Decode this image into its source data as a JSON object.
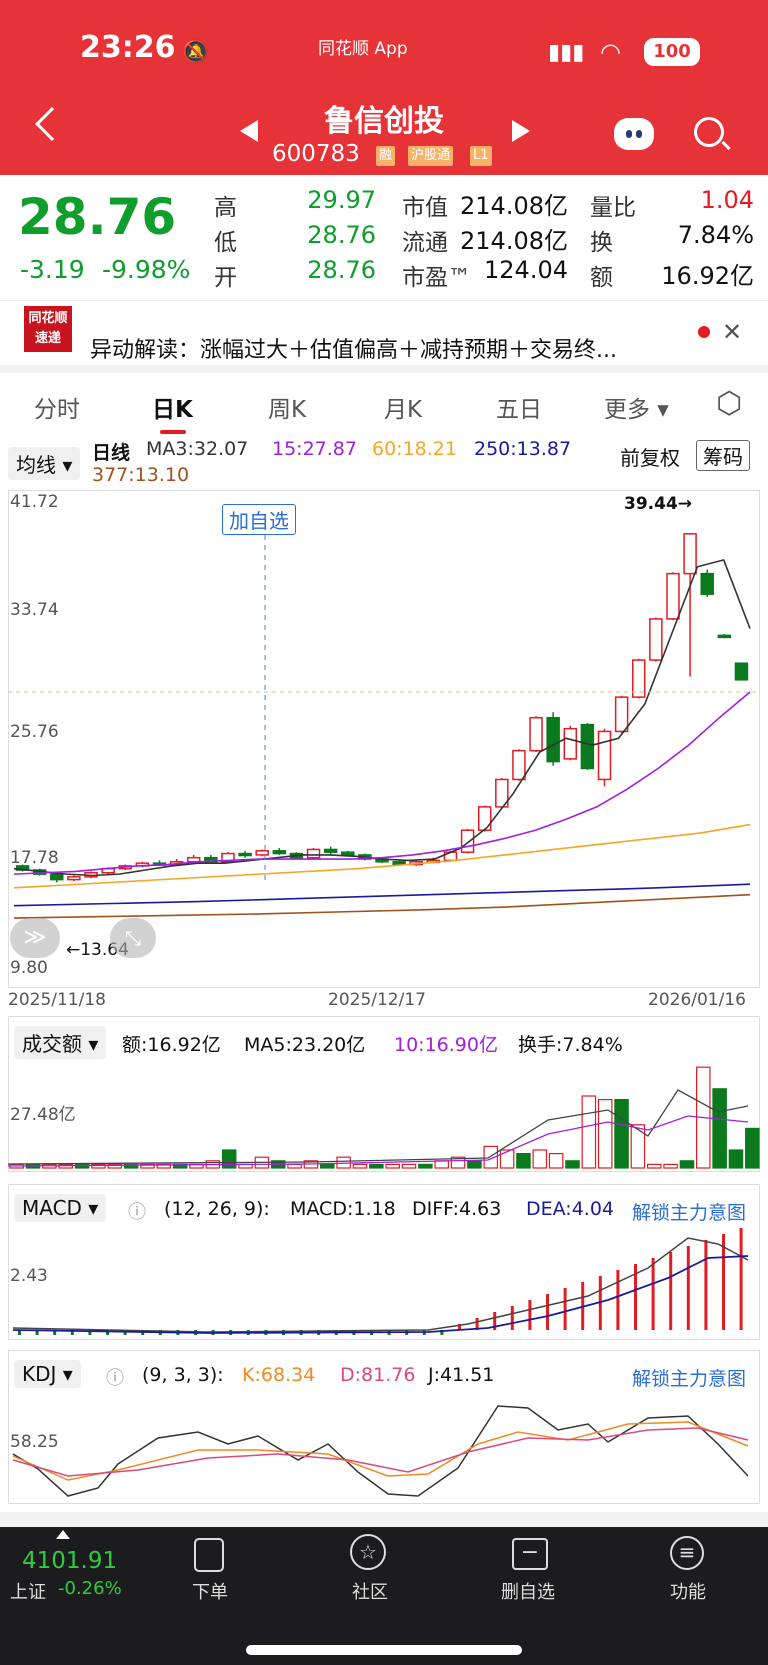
{
  "status_bar": {
    "time": "23:26",
    "app": "同花顺 App",
    "battery": "100"
  },
  "header": {
    "name": "鲁信创投",
    "code": "600783",
    "tags": [
      "融",
      "沪股通",
      "L1"
    ]
  },
  "quote": {
    "price": "28.76",
    "change": "-3.19",
    "change_pct": "-9.98%",
    "labels": {
      "high": "高",
      "low": "低",
      "open": "开",
      "mcap": "市值",
      "float": "流通",
      "pe": "市盈™",
      "vr": "量比",
      "turn": "换",
      "amt": "额"
    },
    "high": "29.97",
    "low": "28.76",
    "open": "28.76",
    "mcap": "214.08亿",
    "float": "214.08亿",
    "pe": "124.04",
    "vr": "1.04",
    "turn": "7.84%",
    "amt": "16.92亿"
  },
  "news": {
    "logo_top": "同花顺",
    "logo_bottom": "速递",
    "text": "异动解读：涨幅过大＋估值偏高＋减持预期＋交易终..."
  },
  "tabs": [
    "分时",
    "日K",
    "周K",
    "月K",
    "五日",
    "更多"
  ],
  "kline": {
    "ma_dropdown": "均线",
    "period": "日线",
    "ma3": "MA3:32.07",
    "ma15": "15:27.87",
    "ma60": "60:18.21",
    "ma250": "250:13.87",
    "ma377": "377:13.10",
    "adjust": "前复权",
    "chips": "筹码",
    "add_watch": "加自选",
    "yticks": [
      "41.72",
      "33.74",
      "25.76",
      "17.78",
      "9.80"
    ],
    "dates": [
      "2025/11/18",
      "2025/12/17",
      "2026/01/16"
    ],
    "high_mark": "39.44→",
    "low_mark": "←13.64",
    "colors": {
      "up": "#e31b23",
      "down": "#0b7a1e",
      "ma3": "#333333",
      "ma15": "#a21ee0",
      "ma60": "#f5a623",
      "ma250": "#1a1a9e",
      "ma377": "#a0521e"
    }
  },
  "volume": {
    "dropdown": "成交额",
    "amount": "额:16.92亿",
    "ma5": "MA5:23.20亿",
    "ma10": "10:16.90亿",
    "turnover": "换手:7.84%",
    "ytick": "27.48亿"
  },
  "macd": {
    "dropdown": "MACD",
    "params": "(12, 26, 9):",
    "macd": "MACD:1.18",
    "diff": "DIFF:4.63",
    "dea": "DEA:4.04",
    "unlock": "解锁主力意图",
    "ytick": "2.43"
  },
  "kdj": {
    "dropdown": "KDJ",
    "params": "(9, 3, 3):",
    "k": "K:68.34",
    "d": "D:81.76",
    "j": "J:41.51",
    "unlock": "解锁主力意图",
    "ytick": "58.25"
  },
  "bottom": {
    "index_value": "4101.91",
    "index_name": "上证",
    "index_pct": "-0.26%",
    "items": [
      "下单",
      "社区",
      "删自选",
      "功能"
    ]
  }
}
